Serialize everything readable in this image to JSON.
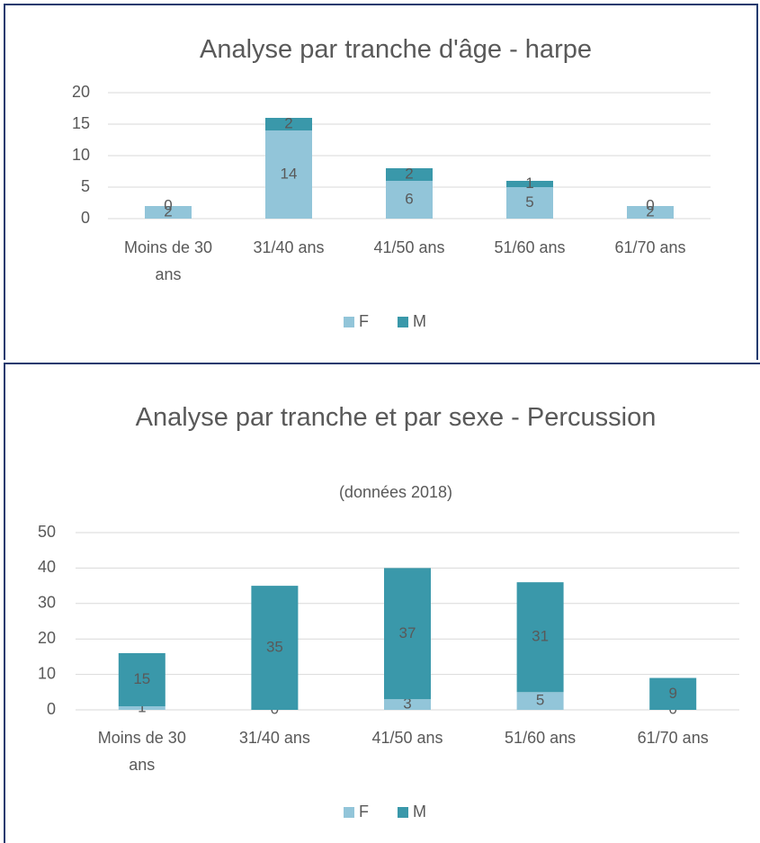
{
  "chart_data": [
    {
      "type": "bar",
      "stacked": true,
      "title": "Analyse par tranche d'âge - harpe",
      "categories": [
        "Moins de 30 ans",
        "31/40 ans",
        "41/50 ans",
        "51/60 ans",
        "61/70 ans"
      ],
      "series": [
        {
          "name": "F",
          "color": "#92c5d9",
          "values": [
            2,
            14,
            6,
            5,
            2
          ]
        },
        {
          "name": "M",
          "color": "#3a98aa",
          "values": [
            0,
            2,
            2,
            1,
            0
          ]
        }
      ],
      "ylim": [
        0,
        20
      ],
      "yticks": [
        0,
        5,
        10,
        15,
        20
      ],
      "grid": true,
      "legend": "bottom"
    },
    {
      "type": "bar",
      "stacked": true,
      "title": "Analyse par tranche et par sexe - Percussion",
      "subtitle": "(données 2018)",
      "categories": [
        "Moins de 30 ans",
        "31/40 ans",
        "41/50 ans",
        "51/60 ans",
        "61/70 ans"
      ],
      "series": [
        {
          "name": "F",
          "color": "#92c5d9",
          "values": [
            1,
            0,
            3,
            5,
            0
          ]
        },
        {
          "name": "M",
          "color": "#3a98aa",
          "values": [
            15,
            35,
            37,
            31,
            9
          ]
        }
      ],
      "ylim": [
        0,
        50
      ],
      "yticks": [
        0,
        10,
        20,
        30,
        40,
        50
      ],
      "grid": true,
      "legend": "bottom"
    }
  ]
}
